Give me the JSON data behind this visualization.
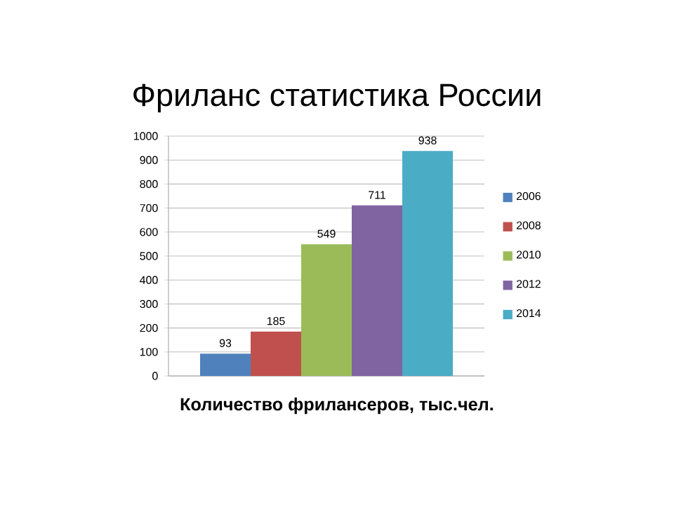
{
  "chart_data": {
    "type": "bar",
    "title": "Фриланс статистика России",
    "xlabel": "**Количество фрилансеров, тыс.чел.**",
    "categories": [
      null
    ],
    "series": [
      {
        "name": "2006",
        "color": "#4f81bd",
        "values": [
          93
        ]
      },
      {
        "name": "2008",
        "color": "#c0504d",
        "values": [
          185
        ]
      },
      {
        "name": "2010",
        "color": "#9bbb59",
        "values": [
          549
        ]
      },
      {
        "name": "2012",
        "color": "#8064a2",
        "values": [
          711
        ]
      },
      {
        "name": "2014",
        "color": "#4bacc6",
        "values": [
          938
        ]
      }
    ],
    "ylim": [
      0,
      1000
    ],
    "yticks": [
      0,
      100,
      200,
      300,
      400,
      500,
      600,
      700,
      800,
      900,
      1000
    ],
    "grid": "y",
    "legend": "right",
    "data_labels": true
  }
}
